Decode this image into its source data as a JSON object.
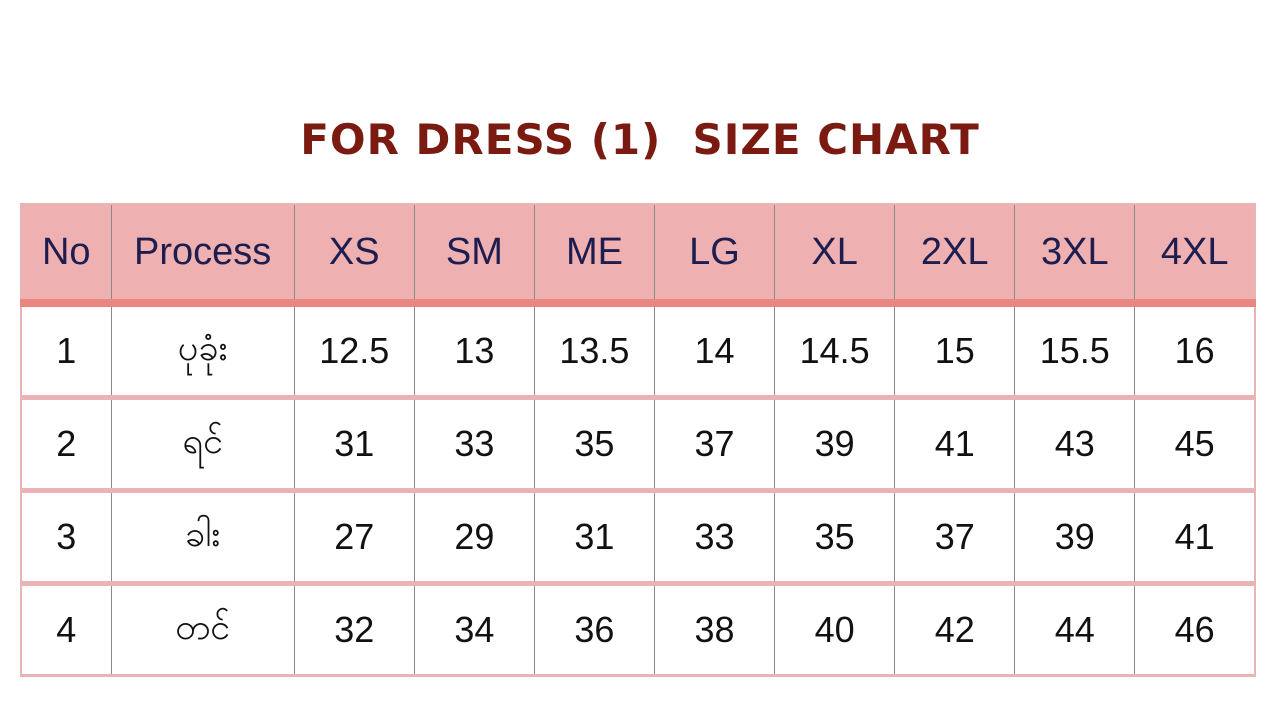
{
  "title": "FOR DRESS (1)  SIZE CHART",
  "table": {
    "headers": [
      "No",
      "Process",
      "XS",
      "SM",
      "ME",
      "LG",
      "XL",
      "2XL",
      "3XL",
      "4XL"
    ],
    "rows": [
      [
        "1",
        "ပုခုံး",
        "12.5",
        "13",
        "13.5",
        "14",
        "14.5",
        "15",
        "15.5",
        "16"
      ],
      [
        "2",
        "ရင်",
        "31",
        "33",
        "35",
        "37",
        "39",
        "41",
        "43",
        "45"
      ],
      [
        "3",
        "ခါး",
        "27",
        "29",
        "31",
        "33",
        "35",
        "37",
        "39",
        "41"
      ],
      [
        "4",
        "တင်",
        "32",
        "34",
        "36",
        "38",
        "40",
        "42",
        "44",
        "46"
      ]
    ]
  },
  "colors": {
    "title": "#7a1a10",
    "header_bg": "#efb0b1",
    "header_text": "#1d1d4f",
    "header_underline": "#e9867f",
    "row_divider": "#eab3b6"
  }
}
